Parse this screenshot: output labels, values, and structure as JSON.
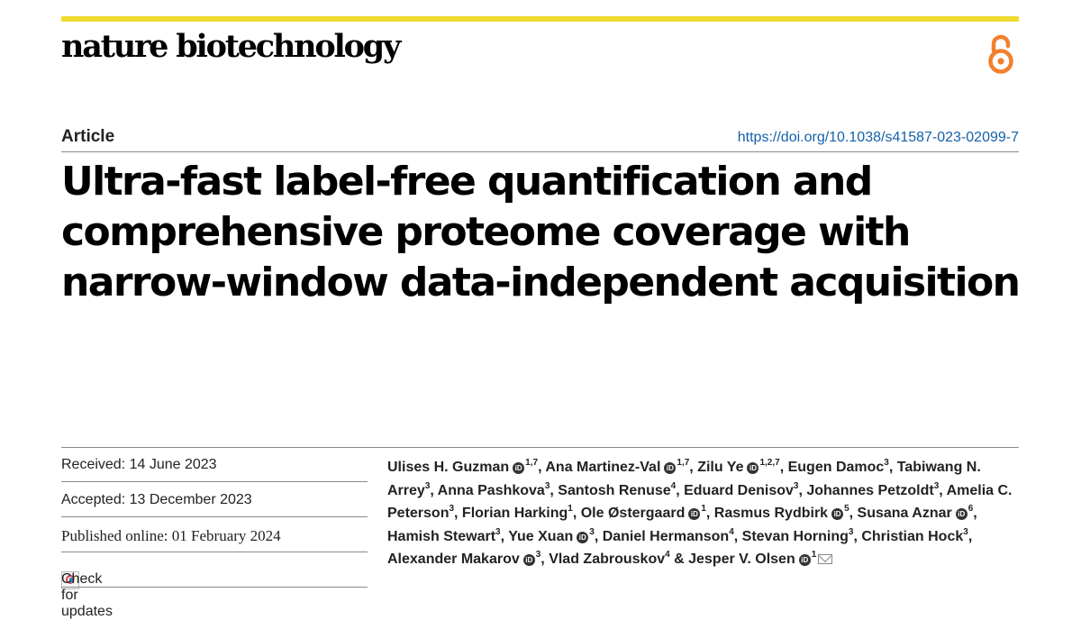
{
  "journal": {
    "name": "nature biotechnology"
  },
  "article": {
    "type": "Article",
    "doi": "https://doi.org/10.1038/s41587-023-02099-7",
    "title": "Ultra-fast label-free quantification and comprehensive proteome coverage with narrow-window data-independent acquisition"
  },
  "dates": {
    "received": "Received: 14 June 2023",
    "accepted": "Accepted: 13 December 2023",
    "published": "Published online: 01 February 2024",
    "check_updates": "Check for updates"
  },
  "icons": {
    "open_access": "open-access-icon",
    "orcid": "orcid-icon",
    "email": "mail-icon",
    "updates": "check-for-updates-icon"
  },
  "colors": {
    "accent_bar": "#f0dc31",
    "open_access": "#f27f2d",
    "doi_link": "#1460a8"
  },
  "authors": [
    {
      "name": "Ulises H. Guzman",
      "orcid": true,
      "aff": "1,7",
      "sep": ", "
    },
    {
      "name": "Ana Martinez-Val",
      "orcid": true,
      "aff": "1,7",
      "sep": ", "
    },
    {
      "name": "Zilu Ye",
      "orcid": true,
      "aff": "1,2,7",
      "sep": ", "
    },
    {
      "name": "Eugen Damoc",
      "orcid": false,
      "aff": "3",
      "sep": ", "
    },
    {
      "name": "Tabiwang N. Arrey",
      "orcid": false,
      "aff": "3",
      "sep": ", "
    },
    {
      "name": "Anna Pashkova",
      "orcid": false,
      "aff": "3",
      "sep": ", "
    },
    {
      "name": "Santosh Renuse",
      "orcid": false,
      "aff": "4",
      "sep": ", "
    },
    {
      "name": "Eduard Denisov",
      "orcid": false,
      "aff": "3",
      "sep": ", "
    },
    {
      "name": "Johannes Petzoldt",
      "orcid": false,
      "aff": "3",
      "sep": ", "
    },
    {
      "name": "Amelia C. Peterson",
      "orcid": false,
      "aff": "3",
      "sep": ", "
    },
    {
      "name": "Florian Harking",
      "orcid": false,
      "aff": "1",
      "sep": ", "
    },
    {
      "name": "Ole Østergaard",
      "orcid": true,
      "aff": "1",
      "sep": ", "
    },
    {
      "name": "Rasmus Rydbirk",
      "orcid": true,
      "aff": "5",
      "sep": ", "
    },
    {
      "name": "Susana Aznar",
      "orcid": true,
      "aff": "6",
      "sep": ", "
    },
    {
      "name": "Hamish Stewart",
      "orcid": false,
      "aff": "3",
      "sep": ", "
    },
    {
      "name": "Yue Xuan",
      "orcid": true,
      "aff": "3",
      "sep": ", "
    },
    {
      "name": "Daniel Hermanson",
      "orcid": false,
      "aff": "4",
      "sep": ", "
    },
    {
      "name": "Stevan Horning",
      "orcid": false,
      "aff": "3",
      "sep": ", "
    },
    {
      "name": "Christian Hock",
      "orcid": false,
      "aff": "3",
      "sep": ", "
    },
    {
      "name": "Alexander Makarov",
      "orcid": true,
      "aff": "3",
      "sep": ", "
    },
    {
      "name": "Vlad Zabrouskov",
      "orcid": false,
      "aff": "4",
      "sep": " & "
    },
    {
      "name": "Jesper V. Olsen",
      "orcid": true,
      "aff": "1",
      "sep": "",
      "corresponding": true
    }
  ]
}
